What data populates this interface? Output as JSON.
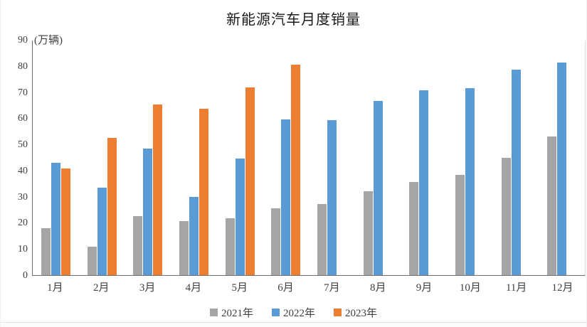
{
  "chart_data": {
    "type": "bar",
    "title": "新能源汽车月度销量",
    "unit_label": "(万辆)",
    "xlabel": "",
    "ylabel": "(万辆)",
    "categories": [
      "1月",
      "2月",
      "3月",
      "4月",
      "5月",
      "6月",
      "7月",
      "8月",
      "9月",
      "10月",
      "11月",
      "12月"
    ],
    "series": [
      {
        "name": "2021年",
        "color": "#a5a5a5",
        "values": [
          17.9,
          11.0,
          22.6,
          20.6,
          21.7,
          25.6,
          27.1,
          32.1,
          35.7,
          38.3,
          45.0,
          53.1
        ]
      },
      {
        "name": "2022年",
        "color": "#5b9bd5",
        "values": [
          43.1,
          33.4,
          48.4,
          29.9,
          44.7,
          59.6,
          59.3,
          66.6,
          70.8,
          71.4,
          78.6,
          81.4
        ]
      },
      {
        "name": "2023年",
        "color": "#ed7d31",
        "values": [
          40.8,
          52.5,
          65.3,
          63.6,
          71.7,
          80.6,
          null,
          null,
          null,
          null,
          null,
          null
        ]
      }
    ],
    "y_ticks": [
      0,
      10,
      20,
      30,
      40,
      50,
      60,
      70,
      80,
      90
    ],
    "ylim": [
      0,
      90
    ],
    "grid": false,
    "legend_position": "bottom",
    "axis_color": "#6e6e6e",
    "text_color": "#3f3f3f"
  }
}
